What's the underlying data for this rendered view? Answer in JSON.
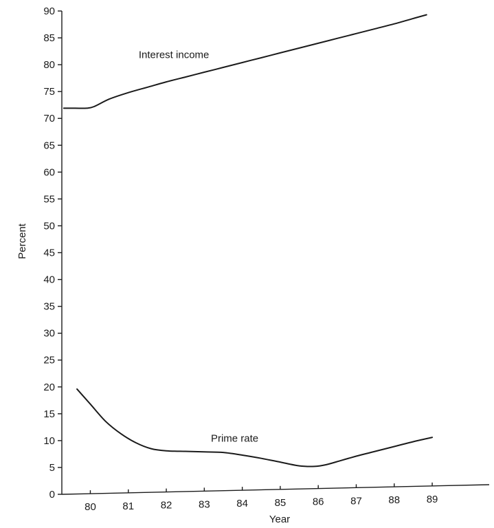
{
  "chart_data": {
    "type": "line",
    "title": "",
    "xlabel": "Year",
    "ylabel": "Percent",
    "ylim": [
      0,
      90
    ],
    "xlim": [
      79.25,
      90.5
    ],
    "yticks": [
      "0",
      "5",
      "10",
      "15",
      "20",
      "25",
      "30",
      "35",
      "40",
      "45",
      "50",
      "55",
      "60",
      "65",
      "70",
      "75",
      "80",
      "85",
      "90"
    ],
    "xticks": [
      "80",
      "81",
      "82",
      "83",
      "84",
      "85",
      "86",
      "87",
      "88",
      "89"
    ],
    "grid": false,
    "legend": "none",
    "line_color": "#1a1a1a",
    "series": [
      {
        "name": "Interest income",
        "x": [
          79.3,
          79.6,
          79.9,
          80.1,
          80.5,
          81.0,
          81.5,
          82.0,
          82.5,
          83.0,
          83.5,
          84.0,
          84.5,
          85.0,
          85.5,
          86.0,
          86.5,
          87.0,
          87.5,
          88.0,
          88.5,
          88.85
        ],
        "values": [
          71.9,
          71.9,
          71.9,
          72.2,
          73.6,
          74.8,
          75.8,
          76.8,
          77.7,
          78.6,
          79.5,
          80.4,
          81.3,
          82.2,
          83.1,
          84.0,
          84.9,
          85.8,
          86.7,
          87.6,
          88.6,
          89.3
        ]
      },
      {
        "name": "Prime rate",
        "x": [
          79.65,
          80.0,
          80.4,
          80.8,
          81.2,
          81.6,
          82.0,
          82.5,
          83.0,
          83.5,
          84.0,
          84.5,
          85.0,
          85.5,
          85.9,
          86.2,
          86.6,
          87.0,
          87.5,
          88.0,
          88.5,
          89.0
        ],
        "values": [
          19.6,
          16.8,
          13.6,
          11.3,
          9.6,
          8.5,
          8.1,
          8.0,
          7.9,
          7.8,
          7.3,
          6.7,
          6.0,
          5.3,
          5.2,
          5.5,
          6.3,
          7.1,
          8.0,
          8.9,
          9.8,
          10.6
        ]
      }
    ]
  }
}
